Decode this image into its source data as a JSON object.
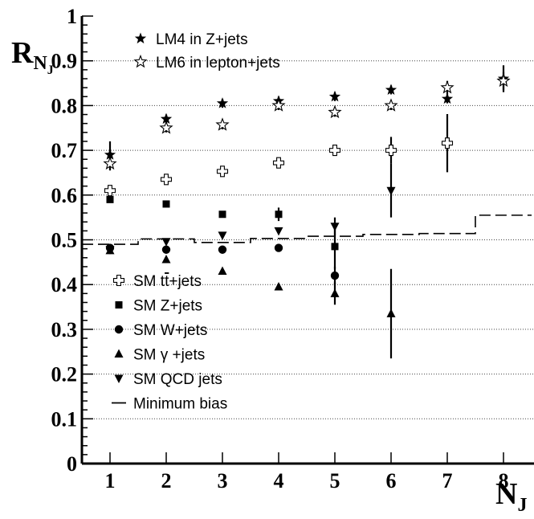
{
  "chart_data": {
    "type": "scatter",
    "xlabel": "N",
    "xlabel_sub": "J",
    "ylabel": "R",
    "ylabel_sub": "N",
    "ylabel_subsub": "J",
    "xlim": [
      0.5,
      8.5
    ],
    "ylim": [
      0,
      1
    ],
    "x_ticks": [
      "1",
      "2",
      "3",
      "4",
      "5",
      "6",
      "7",
      "8"
    ],
    "y_ticks": [
      "0",
      "0.1",
      "0.2",
      "0.3",
      "0.4",
      "0.5",
      "0.6",
      "0.7",
      "0.8",
      "0.9",
      "1"
    ],
    "grid": "horizontal dotted",
    "legend_top": [
      {
        "key": "lm4",
        "label": "LM4 in Z+jets",
        "marker": "star-filled"
      },
      {
        "key": "lm6",
        "label": "LM6 in lepton+jets",
        "marker": "star-open"
      }
    ],
    "legend_bottom": [
      {
        "key": "ttbar",
        "label_prefix": "SM t",
        "label_bar": "t",
        "label_suffix": "+jets",
        "marker": "cross-open"
      },
      {
        "key": "zjets",
        "label": "SM Z+jets",
        "marker": "square"
      },
      {
        "key": "wjets",
        "label": "SM W+jets",
        "marker": "circle"
      },
      {
        "key": "gjets",
        "label": "SM γ +jets",
        "marker": "triangle-up"
      },
      {
        "key": "qcd",
        "label": "SM QCD jets",
        "marker": "triangle-down"
      },
      {
        "key": "minbias",
        "label": "Minimum bias",
        "marker": "line"
      }
    ],
    "series": [
      {
        "key": "lm4",
        "marker": "star-filled",
        "points": [
          {
            "x": 1,
            "y": 0.69,
            "err": 0.03
          },
          {
            "x": 2,
            "y": 0.77,
            "err": 0.01
          },
          {
            "x": 3,
            "y": 0.805,
            "err": 0.01
          },
          {
            "x": 4,
            "y": 0.81,
            "err": 0.01
          },
          {
            "x": 5,
            "y": 0.82,
            "err": 0.01
          },
          {
            "x": 6,
            "y": 0.835,
            "err": 0.01
          },
          {
            "x": 7,
            "y": 0.815,
            "err": 0.01
          },
          {
            "x": 8,
            "y": 0.86,
            "err": 0.03
          }
        ]
      },
      {
        "key": "lm6",
        "marker": "star-open",
        "points": [
          {
            "x": 1,
            "y": 0.67,
            "err": 0.015
          },
          {
            "x": 2,
            "y": 0.75,
            "err": 0.01
          },
          {
            "x": 3,
            "y": 0.757,
            "err": 0.01
          },
          {
            "x": 4,
            "y": 0.8,
            "err": 0.01
          },
          {
            "x": 5,
            "y": 0.785,
            "err": 0.01
          },
          {
            "x": 6,
            "y": 0.8,
            "err": 0.01
          },
          {
            "x": 7,
            "y": 0.84,
            "err": 0.015
          },
          {
            "x": 8,
            "y": 0.855,
            "err": 0.02
          }
        ]
      },
      {
        "key": "ttbar",
        "marker": "cross-open",
        "points": [
          {
            "x": 1,
            "y": 0.61,
            "err": 0.01
          },
          {
            "x": 2,
            "y": 0.635,
            "err": 0.01
          },
          {
            "x": 3,
            "y": 0.653,
            "err": 0.01
          },
          {
            "x": 4,
            "y": 0.672,
            "err": 0.01
          },
          {
            "x": 5,
            "y": 0.7,
            "err": 0.01
          },
          {
            "x": 6,
            "y": 0.7,
            "err": 0.03
          },
          {
            "x": 7,
            "y": 0.716,
            "err": 0.065
          }
        ]
      },
      {
        "key": "zjets",
        "marker": "square",
        "points": [
          {
            "x": 1,
            "y": 0.59,
            "err": 0.005
          },
          {
            "x": 2,
            "y": 0.58,
            "err": 0.005
          },
          {
            "x": 3,
            "y": 0.557,
            "err": 0.005
          },
          {
            "x": 4,
            "y": 0.557,
            "err": 0.015
          },
          {
            "x": 5,
            "y": 0.485,
            "err": 0.05
          }
        ]
      },
      {
        "key": "wjets",
        "marker": "circle",
        "points": [
          {
            "x": 1,
            "y": 0.482,
            "err": 0.005
          },
          {
            "x": 2,
            "y": 0.478,
            "err": 0.005
          },
          {
            "x": 3,
            "y": 0.478,
            "err": 0.005
          },
          {
            "x": 4,
            "y": 0.482,
            "err": 0.005
          },
          {
            "x": 5,
            "y": 0.42,
            "err": 0.02
          }
        ]
      },
      {
        "key": "gjets",
        "marker": "triangle-up",
        "points": [
          {
            "x": 1,
            "y": 0.476,
            "err": 0.005
          },
          {
            "x": 2,
            "y": 0.456,
            "err": 0.005
          },
          {
            "x": 3,
            "y": 0.43,
            "err": 0.005
          },
          {
            "x": 4,
            "y": 0.395,
            "err": 0.005
          },
          {
            "x": 5,
            "y": 0.38,
            "err": 0.025
          },
          {
            "x": 6,
            "y": 0.335,
            "err": 0.1
          }
        ]
      },
      {
        "key": "qcd",
        "marker": "triangle-down",
        "points": [
          {
            "x": 1,
            "y": 0.478,
            "err": 0.005
          },
          {
            "x": 2,
            "y": 0.496,
            "err": 0.005
          },
          {
            "x": 3,
            "y": 0.51,
            "err": 0.005
          },
          {
            "x": 4,
            "y": 0.52,
            "err": 0.005
          },
          {
            "x": 5,
            "y": 0.53,
            "err": 0.02
          },
          {
            "x": 6,
            "y": 0.61,
            "err": 0.06
          }
        ]
      }
    ],
    "min_bias_steps": [
      {
        "x0": 0.5,
        "x1": 1.5,
        "y": 0.49
      },
      {
        "x0": 1.5,
        "x1": 2.5,
        "y": 0.502
      },
      {
        "x0": 2.5,
        "x1": 3.5,
        "y": 0.494
      },
      {
        "x0": 3.5,
        "x1": 4.5,
        "y": 0.503
      },
      {
        "x0": 4.5,
        "x1": 5.5,
        "y": 0.508
      },
      {
        "x0": 5.5,
        "x1": 6.5,
        "y": 0.512
      },
      {
        "x0": 6.5,
        "x1": 7.5,
        "y": 0.514
      },
      {
        "x0": 7.5,
        "x1": 8.5,
        "y": 0.555
      }
    ]
  }
}
